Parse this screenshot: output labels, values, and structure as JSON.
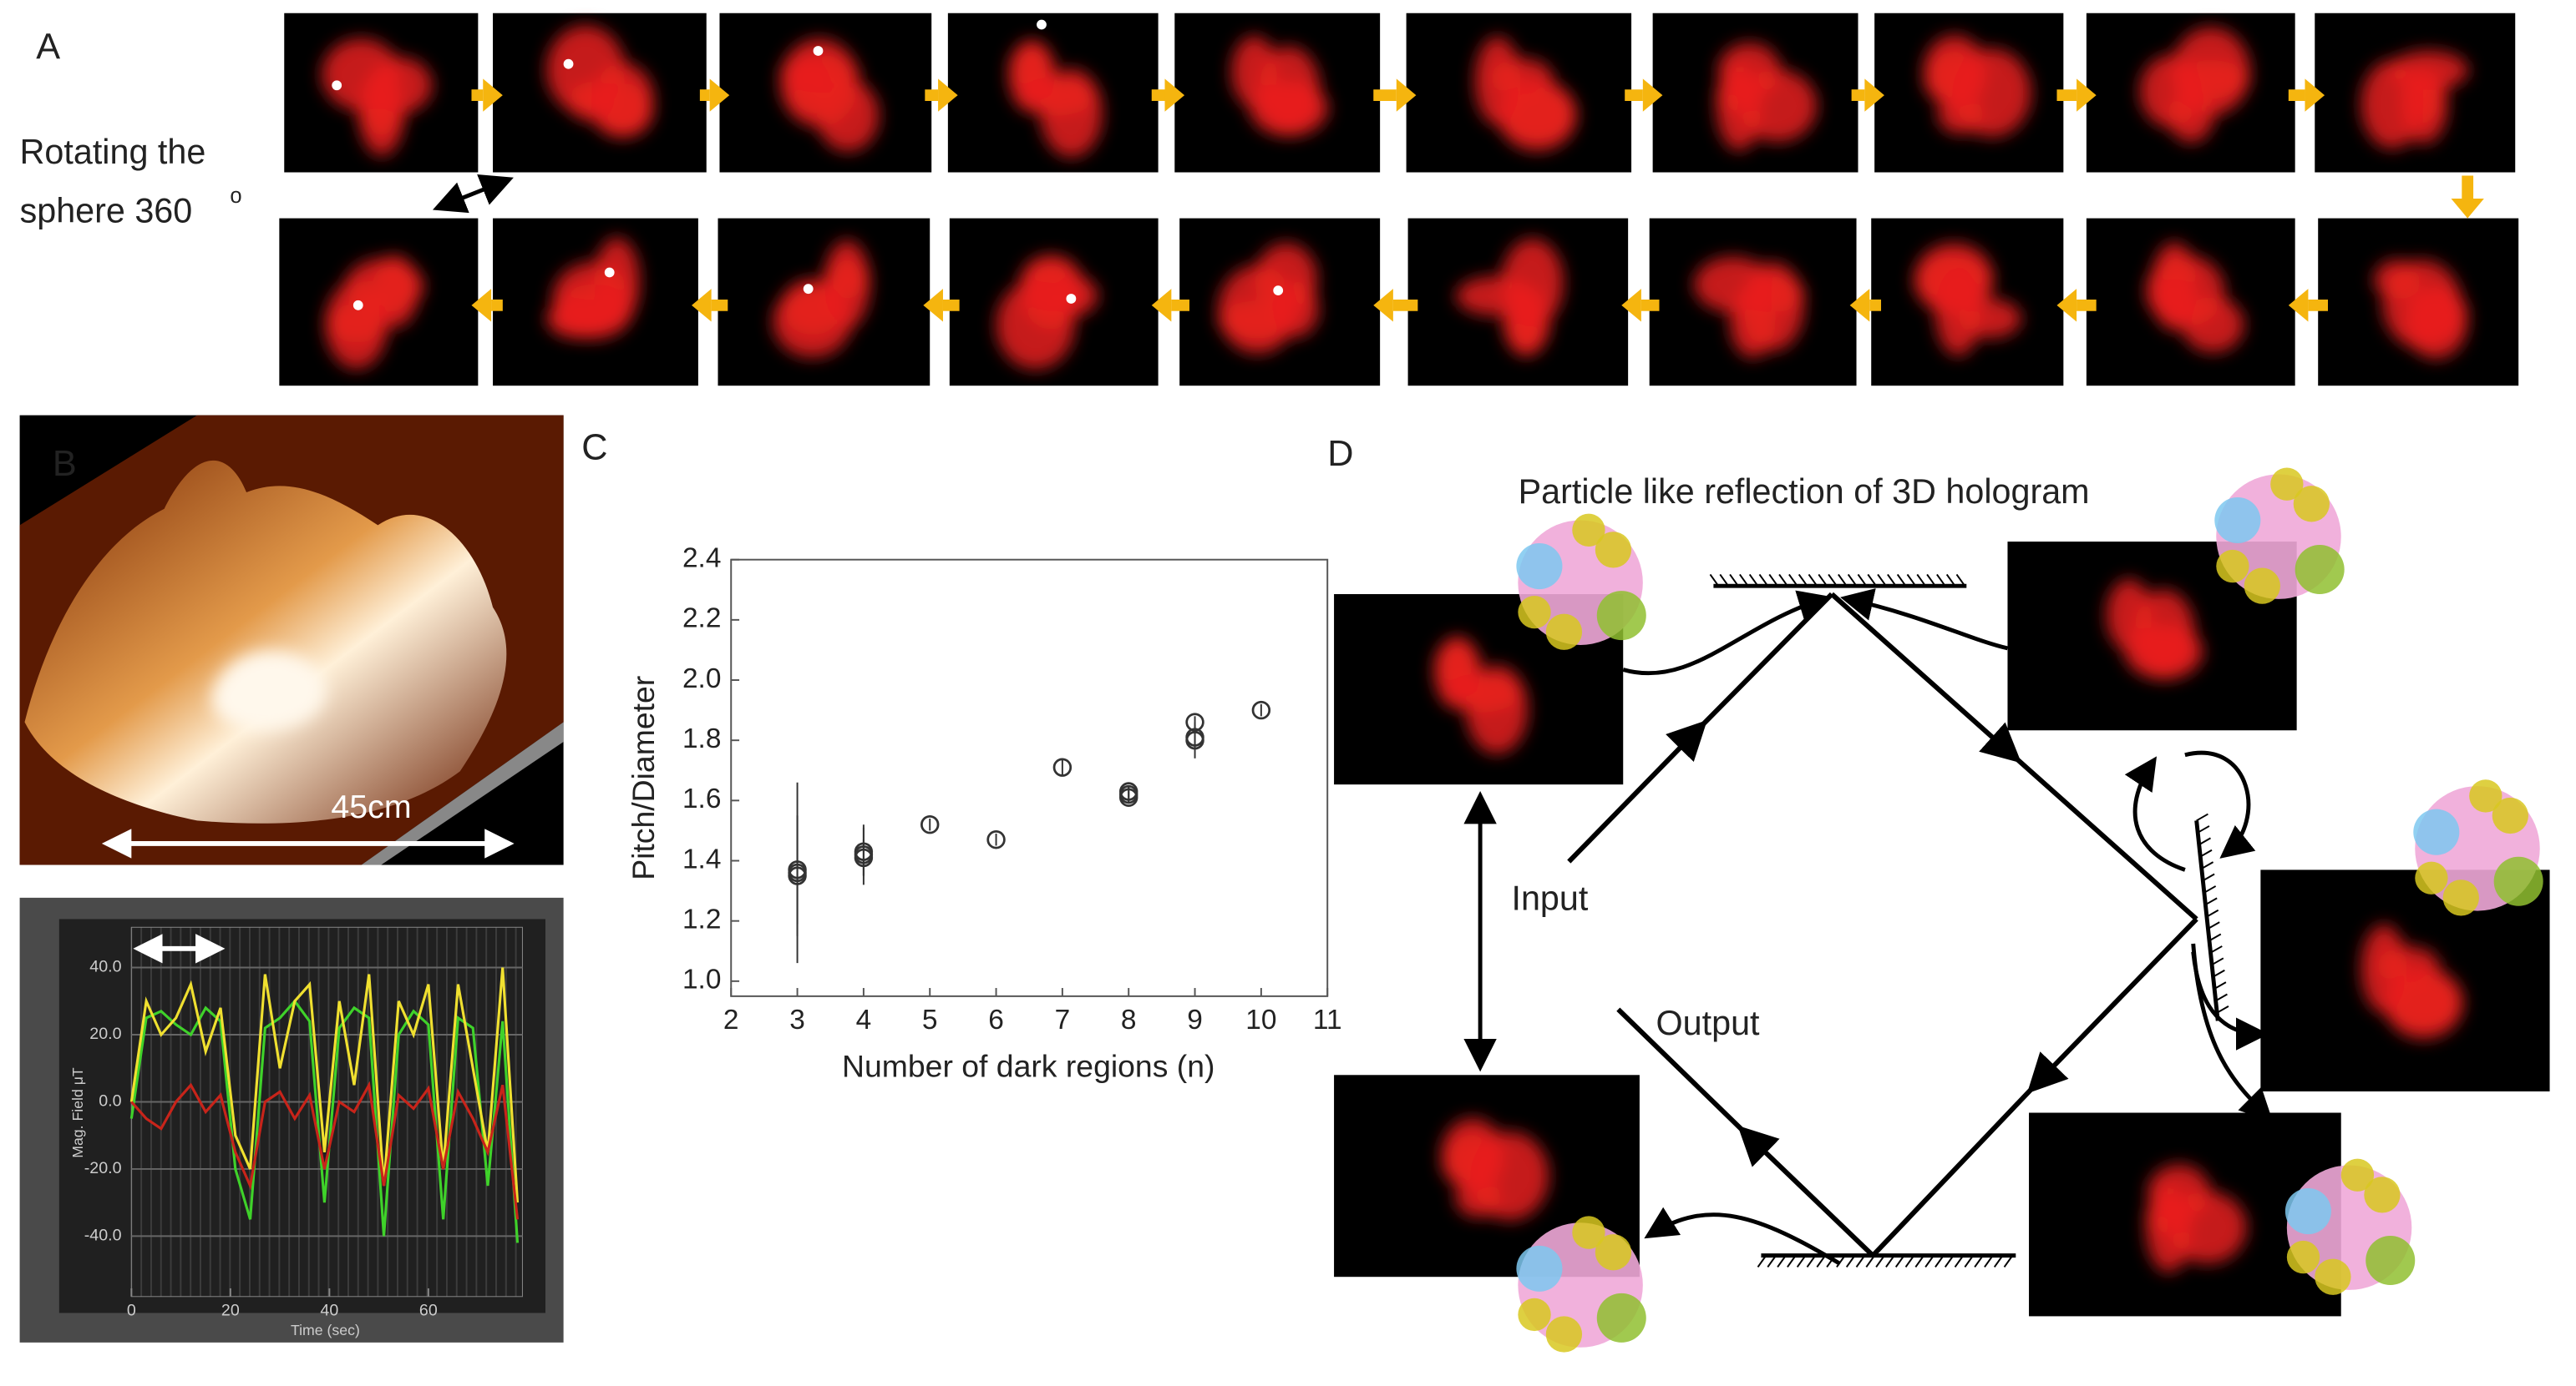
{
  "panels": {
    "a": {
      "label": "A",
      "caption_lines": [
        "Rotating the",
        "sphere 360"
      ],
      "caption_sup": "o"
    },
    "b": {
      "label": "B",
      "scale": "45cm"
    },
    "c": {
      "label": "C"
    },
    "d": {
      "label": "D",
      "title": "Particle like reflection of 3D hologram",
      "input": "Input",
      "output": "Output"
    }
  },
  "chart_data": [
    {
      "type": "scatter",
      "xlabel": "Number of dark regions (n)",
      "ylabel": "Pitch/Diameter",
      "x": [
        3,
        3,
        3,
        4,
        4,
        4,
        5,
        6,
        7,
        8,
        8,
        8,
        9,
        9,
        9,
        10
      ],
      "values": [
        1.36,
        1.37,
        1.35,
        1.42,
        1.43,
        1.41,
        1.52,
        1.47,
        1.71,
        1.62,
        1.63,
        1.61,
        1.86,
        1.8,
        1.81,
        1.9
      ],
      "errors": [
        0.3,
        0.18,
        0.2,
        0.1,
        0.08,
        0.06,
        0.02,
        0.02,
        0.03,
        0.03,
        0.02,
        0.02,
        0.02,
        0.06,
        0.04,
        0.02
      ],
      "color": "#333333",
      "xlim": [
        2,
        11
      ],
      "xticks": [
        2,
        3,
        4,
        5,
        6,
        7,
        8,
        9,
        10,
        11
      ],
      "ylim": [
        0.95,
        2.4
      ],
      "yticks": [
        {
          "value": 1,
          "label": "1.0"
        },
        1.2,
        1.4,
        1.6,
        1.8,
        {
          "value": 2,
          "label": "2.0"
        },
        2.2,
        2.4
      ]
    },
    {
      "type": "line",
      "xlabel": "Time (sec)",
      "ylabel": "Mag. Field μT",
      "x": [
        0,
        3,
        6,
        9,
        12,
        15,
        18,
        21,
        24,
        27,
        30,
        33,
        36,
        39,
        42,
        45,
        48,
        51,
        54,
        57,
        60,
        63,
        66,
        69,
        72,
        75,
        78
      ],
      "series": [
        {
          "name": "green",
          "color": "#3fd22a",
          "values": [
            -5,
            25,
            27,
            23,
            20,
            28,
            24,
            -20,
            -35,
            22,
            25,
            30,
            24,
            -30,
            22,
            28,
            25,
            -40,
            20,
            27,
            23,
            -35,
            25,
            22,
            -25,
            24,
            -42
          ]
        },
        {
          "name": "yellow",
          "color": "#f0e030",
          "values": [
            0,
            30,
            20,
            25,
            35,
            15,
            28,
            -10,
            -20,
            38,
            10,
            30,
            35,
            -15,
            30,
            5,
            38,
            -25,
            30,
            20,
            35,
            -20,
            35,
            10,
            -15,
            40,
            -30
          ]
        },
        {
          "name": "red",
          "color": "#c8241a",
          "values": [
            0,
            -5,
            -8,
            0,
            5,
            -3,
            2,
            -15,
            -25,
            0,
            3,
            -5,
            2,
            -20,
            0,
            -3,
            5,
            -25,
            2,
            -2,
            4,
            -20,
            3,
            -5,
            -15,
            5,
            -35
          ]
        }
      ],
      "xlim": [
        0,
        79
      ],
      "xticks": [
        0,
        20,
        40,
        60
      ],
      "ylim": [
        -58,
        52
      ],
      "yticks": [
        {
          "value": 40,
          "label": "40.0"
        },
        {
          "value": 20,
          "label": "20.0"
        },
        {
          "value": 0,
          "label": "0.0"
        },
        {
          "value": -20,
          "label": "-20.0"
        },
        {
          "value": -40,
          "label": "-40.0"
        }
      ]
    }
  ]
}
